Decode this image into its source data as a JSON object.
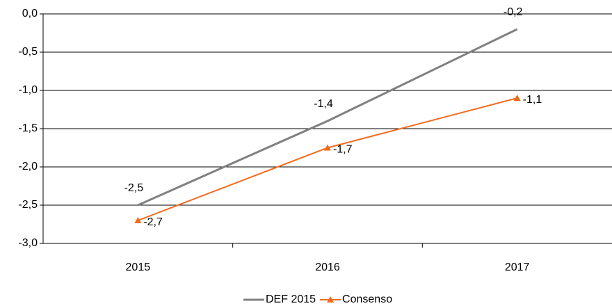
{
  "chart_data": {
    "type": "line",
    "categories": [
      "2015",
      "2016",
      "2017"
    ],
    "series": [
      {
        "name": "DEF 2015",
        "color": "#808080",
        "values": [
          -2.5,
          -1.4,
          -0.2
        ],
        "value_labels": [
          "-2,5",
          "-1,4",
          "-0,2"
        ]
      },
      {
        "name": "Consenso",
        "color": "#f26b1d",
        "values": [
          -2.7,
          -1.75,
          -1.1
        ],
        "value_labels": [
          "-2,7",
          "-1,7",
          "-1,1"
        ],
        "marker": "triangle"
      }
    ],
    "ylim": [
      -3.0,
      0.0
    ],
    "yticks": [
      {
        "value": 0.0,
        "label": "0,0"
      },
      {
        "value": -0.5,
        "label": "-0,5"
      },
      {
        "value": -1.0,
        "label": "-1,0"
      },
      {
        "value": -1.5,
        "label": "-1,5"
      },
      {
        "value": -2.0,
        "label": "-2,0"
      },
      {
        "value": -2.5,
        "label": "-2,5"
      },
      {
        "value": -3.0,
        "label": "-3,0"
      }
    ],
    "grid": true,
    "legend": "bottom"
  }
}
